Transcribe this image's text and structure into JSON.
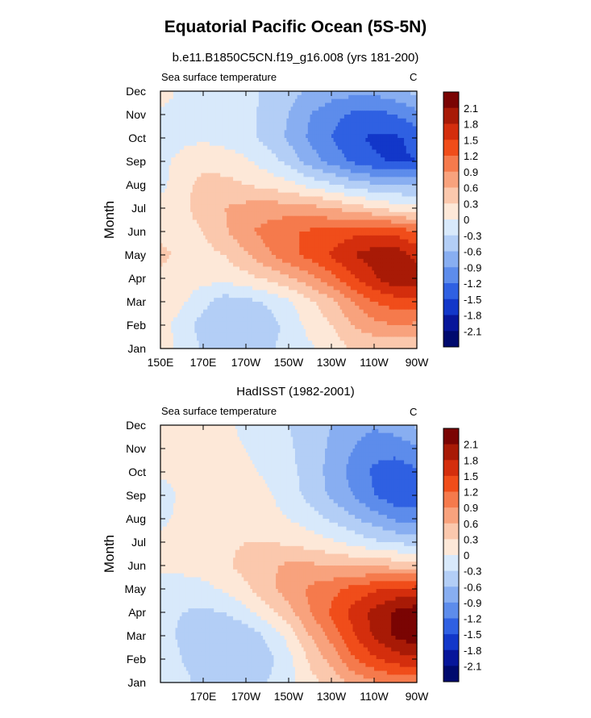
{
  "title": "Equatorial Pacific Ocean (5S-5N)",
  "colorbar": {
    "levels": [
      2.1,
      1.8,
      1.5,
      1.2,
      0.9,
      0.6,
      0.3,
      0,
      -0.3,
      -0.6,
      -0.9,
      -1.2,
      -1.5,
      -1.8,
      -2.1
    ],
    "labels": [
      "2.1",
      "1.8",
      "1.5",
      "1.2",
      "0.9",
      "0.6",
      "0.3",
      "0",
      "-0.3",
      "-0.6",
      "-0.9",
      "-1.2",
      "-1.5",
      "-1.8",
      "-2.1"
    ],
    "colors": [
      "#7a0403",
      "#a81a06",
      "#d42e0d",
      "#f04d1a",
      "#f57a4c",
      "#f8a27d",
      "#fbc8ad",
      "#fde8d8",
      "#d8e9fb",
      "#b3cef6",
      "#88aef1",
      "#5d8ceb",
      "#2f60e2",
      "#1237c9",
      "#07169a",
      "#000a6e"
    ]
  },
  "chart_data": [
    {
      "type": "heatmap",
      "subtitle": "b.e11.B1850C5CN.f19_g16.008 (yrs 181-200)",
      "left_label": "Sea surface temperature",
      "right_label": "C",
      "ylabel": "Month",
      "yticks": [
        "Jan",
        "Feb",
        "Mar",
        "Apr",
        "May",
        "Jun",
        "Jul",
        "Aug",
        "Sep",
        "Oct",
        "Nov",
        "Dec"
      ],
      "xticks": [
        "150E",
        "170E",
        "170W",
        "150W",
        "130W",
        "110W",
        "90W"
      ],
      "xlim_east": [
        150,
        270
      ],
      "x": [
        150,
        160,
        170,
        180,
        190,
        200,
        210,
        220,
        230,
        240,
        250,
        260,
        270
      ],
      "months": [
        "Jan",
        "Feb",
        "Mar",
        "Apr",
        "May",
        "Jun",
        "Jul",
        "Aug",
        "Sep",
        "Oct",
        "Nov",
        "Dec"
      ],
      "values": [
        [
          0.1,
          -0.05,
          -0.35,
          -0.45,
          -0.4,
          -0.35,
          -0.2,
          -0.05,
          0.1,
          0.35,
          0.35,
          0.3,
          0.25
        ],
        [
          0.1,
          -0.1,
          -0.45,
          -0.6,
          -0.55,
          -0.45,
          -0.2,
          0.1,
          0.3,
          0.6,
          0.8,
          0.9,
          0.85
        ],
        [
          0.15,
          0.05,
          -0.2,
          -0.45,
          -0.4,
          -0.25,
          -0.05,
          0.25,
          0.5,
          0.9,
          1.2,
          1.35,
          1.35
        ],
        [
          0.2,
          0.15,
          0.1,
          0.1,
          0.2,
          0.35,
          0.55,
          0.8,
          1.1,
          1.45,
          1.75,
          2.05,
          1.95
        ],
        [
          0.4,
          0.2,
          0.2,
          0.3,
          0.55,
          0.85,
          1.1,
          1.3,
          1.55,
          1.8,
          1.95,
          2.0,
          1.7
        ],
        [
          0.2,
          0.2,
          0.3,
          0.55,
          0.85,
          1.0,
          1.15,
          1.25,
          1.3,
          1.4,
          1.45,
          1.4,
          1.2
        ],
        [
          0.15,
          0.25,
          0.4,
          0.6,
          0.7,
          0.75,
          0.75,
          0.7,
          0.6,
          0.45,
          0.3,
          0.15,
          0.05
        ],
        [
          -0.1,
          0.2,
          0.4,
          0.4,
          0.3,
          0.2,
          0.1,
          -0.1,
          -0.25,
          -0.45,
          -0.55,
          -0.6,
          -0.6
        ],
        [
          -0.05,
          0.05,
          0.2,
          0.15,
          0.05,
          -0.15,
          -0.4,
          -0.75,
          -1.0,
          -1.25,
          -1.45,
          -1.55,
          -1.5
        ],
        [
          -0.05,
          -0.05,
          -0.05,
          -0.1,
          -0.2,
          -0.4,
          -0.65,
          -0.95,
          -1.2,
          -1.45,
          -1.55,
          -1.55,
          -1.4
        ],
        [
          -0.05,
          -0.05,
          -0.1,
          -0.15,
          -0.2,
          -0.4,
          -0.6,
          -0.9,
          -1.1,
          -1.25,
          -1.3,
          -1.2,
          -1.0
        ],
        [
          0.1,
          -0.05,
          -0.1,
          -0.15,
          -0.2,
          -0.35,
          -0.5,
          -0.65,
          -0.75,
          -0.8,
          -0.8,
          -0.7,
          -0.5
        ]
      ]
    },
    {
      "type": "heatmap",
      "subtitle": "HadISST (1982-2001)",
      "left_label": "Sea surface temperature",
      "right_label": "C",
      "ylabel": "Month",
      "yticks": [
        "Jan",
        "Feb",
        "Mar",
        "Apr",
        "May",
        "Jun",
        "Jul",
        "Aug",
        "Sep",
        "Oct",
        "Nov",
        "Dec"
      ],
      "xticks": [
        "170E",
        "170W",
        "150W",
        "130W",
        "110W",
        "90W"
      ],
      "xlim_east": [
        150,
        270
      ],
      "x": [
        150,
        160,
        170,
        180,
        190,
        200,
        210,
        220,
        230,
        240,
        250,
        260,
        270
      ],
      "months": [
        "Jan",
        "Feb",
        "Mar",
        "Apr",
        "May",
        "Jun",
        "Jul",
        "Aug",
        "Sep",
        "Oct",
        "Nov",
        "Dec"
      ],
      "values": [
        [
          -0.1,
          -0.2,
          -0.4,
          -0.45,
          -0.4,
          -0.3,
          -0.1,
          0.2,
          0.4,
          0.7,
          0.85,
          1.0,
          1.0
        ],
        [
          -0.1,
          -0.3,
          -0.55,
          -0.6,
          -0.55,
          -0.4,
          -0.1,
          0.35,
          0.7,
          1.15,
          1.45,
          1.65,
          1.75
        ],
        [
          -0.2,
          -0.35,
          -0.55,
          -0.6,
          -0.5,
          -0.25,
          0.1,
          0.6,
          1.0,
          1.45,
          1.85,
          2.15,
          2.3
        ],
        [
          -0.2,
          -0.3,
          -0.35,
          -0.3,
          -0.1,
          0.2,
          0.5,
          0.9,
          1.25,
          1.6,
          1.9,
          2.15,
          2.3
        ],
        [
          -0.1,
          -0.15,
          -0.1,
          0.05,
          0.25,
          0.5,
          0.75,
          0.95,
          1.1,
          1.3,
          1.45,
          1.55,
          1.6
        ],
        [
          0.05,
          0.1,
          0.15,
          0.25,
          0.4,
          0.55,
          0.65,
          0.65,
          0.6,
          0.55,
          0.55,
          0.5,
          0.45
        ],
        [
          0.1,
          0.15,
          0.2,
          0.25,
          0.3,
          0.3,
          0.25,
          0.15,
          0.05,
          -0.1,
          -0.25,
          -0.35,
          -0.4
        ],
        [
          -0.1,
          0.1,
          0.15,
          0.2,
          0.15,
          0.1,
          0.0,
          -0.15,
          -0.35,
          -0.55,
          -0.75,
          -0.95,
          -1.0
        ],
        [
          -0.15,
          0.05,
          0.15,
          0.3,
          0.15,
          0.05,
          -0.15,
          -0.4,
          -0.65,
          -0.9,
          -1.2,
          -1.4,
          -1.4
        ],
        [
          0.05,
          0.1,
          0.1,
          0.1,
          0.05,
          -0.05,
          -0.2,
          -0.45,
          -0.7,
          -1.0,
          -1.25,
          -1.35,
          -1.25
        ],
        [
          0.1,
          0.1,
          0.1,
          0.05,
          0.0,
          -0.1,
          -0.25,
          -0.45,
          -0.65,
          -0.9,
          -1.1,
          -1.1,
          -0.95
        ],
        [
          0.15,
          0.15,
          0.1,
          0.05,
          -0.05,
          -0.15,
          -0.3,
          -0.45,
          -0.6,
          -0.75,
          -0.85,
          -0.75,
          -0.55
        ]
      ]
    }
  ]
}
